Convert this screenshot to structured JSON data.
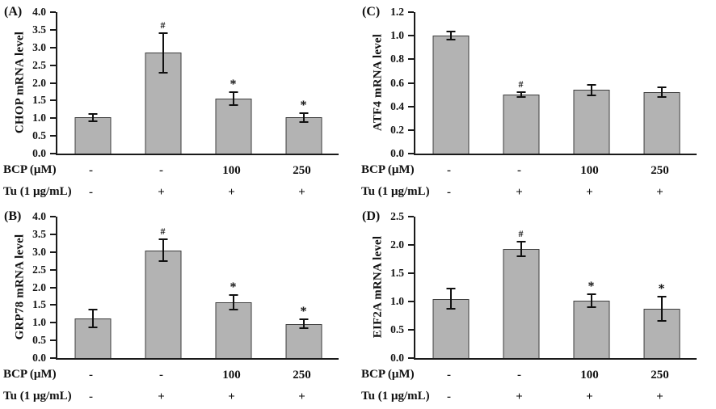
{
  "figure": {
    "background": "#ffffff",
    "bar_fill": "#b3b3b3",
    "bar_border": "#3d3d3d",
    "axis_color": "#1a1a1a",
    "row1_label": "BCP (μM)",
    "row2_label": "Tu (1 μg/mL)"
  },
  "chart_data": [
    {
      "type": "bar",
      "panel": "(A)",
      "ylabel": "CHOP mRNA level",
      "xlabel": "",
      "ylim": [
        0,
        4.0
      ],
      "grid": false,
      "legend": "none",
      "yticks": [
        0,
        0.5,
        1.0,
        1.5,
        2.0,
        2.5,
        3.0,
        3.5,
        4.0
      ],
      "ytick_labels": [
        "0.0",
        "0.5",
        "1.0",
        "1.5",
        "2.0",
        "2.5",
        "3.0",
        "3.5",
        "4.0"
      ],
      "categories_bcp": [
        "-",
        "-",
        "100",
        "250"
      ],
      "categories_tu": [
        "-",
        "+",
        "+",
        "+"
      ],
      "values": [
        1.02,
        2.85,
        1.55,
        1.02
      ],
      "errors": [
        0.12,
        0.58,
        0.2,
        0.15
      ],
      "sig_markers": [
        "",
        "#",
        "*",
        "*"
      ]
    },
    {
      "type": "bar",
      "panel": "(C)",
      "ylabel": "ATF4 mRNA level",
      "xlabel": "",
      "ylim": [
        0,
        1.2
      ],
      "grid": false,
      "legend": "none",
      "yticks": [
        0,
        0.2,
        0.4,
        0.6,
        0.8,
        1.0,
        1.2
      ],
      "ytick_labels": [
        "0.0",
        "0.2",
        "0.4",
        "0.6",
        "0.8",
        "1.0",
        "1.2"
      ],
      "categories_bcp": [
        "-",
        "-",
        "100",
        "250"
      ],
      "categories_tu": [
        "-",
        "+",
        "+",
        "+"
      ],
      "values": [
        1.0,
        0.5,
        0.54,
        0.52
      ],
      "errors": [
        0.04,
        0.03,
        0.05,
        0.05
      ],
      "sig_markers": [
        "",
        "#",
        "",
        ""
      ]
    },
    {
      "type": "bar",
      "panel": "(B)",
      "ylabel": "GRP78 mRNA level",
      "xlabel": "",
      "ylim": [
        0,
        4.0
      ],
      "grid": false,
      "legend": "none",
      "yticks": [
        0,
        0.5,
        1.0,
        1.5,
        2.0,
        2.5,
        3.0,
        3.5,
        4.0
      ],
      "ytick_labels": [
        "0.0",
        "0.5",
        "1.0",
        "1.5",
        "2.0",
        "2.5",
        "3.0",
        "3.5",
        "4.0"
      ],
      "categories_bcp": [
        "-",
        "-",
        "100",
        "250"
      ],
      "categories_tu": [
        "-",
        "+",
        "+",
        "+"
      ],
      "values": [
        1.12,
        3.05,
        1.58,
        0.97
      ],
      "errors": [
        0.27,
        0.34,
        0.22,
        0.15
      ],
      "sig_markers": [
        "",
        "#",
        "*",
        "*"
      ]
    },
    {
      "type": "bar",
      "panel": "(D)",
      "ylabel": "EIF2A mRNA level",
      "xlabel": "",
      "ylim": [
        0,
        2.5
      ],
      "grid": false,
      "legend": "none",
      "yticks": [
        0,
        0.5,
        1.0,
        1.5,
        2.0,
        2.5
      ],
      "ytick_labels": [
        "0.0",
        "0.5",
        "1.0",
        "1.5",
        "2.0",
        "2.5"
      ],
      "categories_bcp": [
        "-",
        "-",
        "100",
        "250"
      ],
      "categories_tu": [
        "-",
        "+",
        "+",
        "+"
      ],
      "values": [
        1.05,
        1.93,
        1.01,
        0.87
      ],
      "errors": [
        0.19,
        0.14,
        0.13,
        0.23
      ],
      "sig_markers": [
        "",
        "#",
        "*",
        "*"
      ]
    }
  ]
}
